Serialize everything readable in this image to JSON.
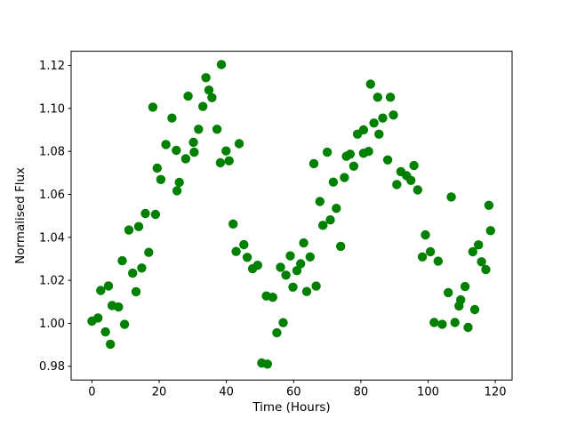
{
  "figure": {
    "background": "#ffffff",
    "plot_bg": "#ffffff",
    "spine_color": "#000000"
  },
  "chart_data": {
    "type": "scatter",
    "title": "",
    "xlabel": "Time (Hours)",
    "ylabel": "Normalised Flux",
    "legend": null,
    "grid": false,
    "marker": "circle",
    "marker_color": "#008000",
    "marker_radius_px": 5.2,
    "xlim": [
      -6.2,
      125.0
    ],
    "ylim": [
      0.9736,
      1.1266
    ],
    "xticks": [
      0,
      20,
      40,
      60,
      80,
      100,
      120
    ],
    "xtick_labels": [
      "0",
      "20",
      "40",
      "60",
      "80",
      "100",
      "120"
    ],
    "yticks": [
      0.98,
      1.0,
      1.02,
      1.04,
      1.06,
      1.08,
      1.1,
      1.12
    ],
    "ytick_labels": [
      "0.98",
      "1.00",
      "1.02",
      "1.04",
      "1.06",
      "1.08",
      "1.10",
      "1.12"
    ],
    "x_units": "hours",
    "y_units": "normalised flux",
    "points": [
      [
        0.0,
        1.001
      ],
      [
        1.8,
        1.0025
      ],
      [
        2.6,
        1.0153
      ],
      [
        4.0,
        0.996
      ],
      [
        4.9,
        1.0174
      ],
      [
        5.5,
        0.9903
      ],
      [
        6.0,
        1.0083
      ],
      [
        7.9,
        1.0076
      ],
      [
        9.0,
        1.0291
      ],
      [
        9.7,
        0.9995
      ],
      [
        11.0,
        1.0434
      ],
      [
        12.1,
        1.0233
      ],
      [
        13.1,
        1.0147
      ],
      [
        13.9,
        1.045
      ],
      [
        14.8,
        1.0257
      ],
      [
        15.9,
        1.0511
      ],
      [
        16.9,
        1.033
      ],
      [
        18.1,
        1.1006
      ],
      [
        18.9,
        1.0507
      ],
      [
        19.4,
        1.0722
      ],
      [
        20.5,
        1.0669
      ],
      [
        22.0,
        1.0832
      ],
      [
        23.8,
        1.0955
      ],
      [
        25.1,
        1.0805
      ],
      [
        25.3,
        1.0617
      ],
      [
        26.0,
        1.0656
      ],
      [
        27.9,
        1.0766
      ],
      [
        28.6,
        1.1057
      ],
      [
        30.2,
        1.0842
      ],
      [
        30.4,
        1.0796
      ],
      [
        31.7,
        1.0903
      ],
      [
        33.0,
        1.1009
      ],
      [
        33.9,
        1.1143
      ],
      [
        34.8,
        1.1085
      ],
      [
        35.7,
        1.105
      ],
      [
        37.2,
        1.0903
      ],
      [
        38.2,
        1.0747
      ],
      [
        38.5,
        1.1204
      ],
      [
        39.9,
        1.0802
      ],
      [
        40.8,
        1.0756
      ],
      [
        42.0,
        1.0462
      ],
      [
        42.9,
        1.0334
      ],
      [
        43.8,
        1.0836
      ],
      [
        45.2,
        1.0366
      ],
      [
        46.2,
        1.0307
      ],
      [
        47.8,
        1.0254
      ],
      [
        49.3,
        1.027
      ],
      [
        50.5,
        0.9815
      ],
      [
        51.9,
        1.0127
      ],
      [
        52.2,
        0.981
      ],
      [
        53.8,
        1.0121
      ],
      [
        55.0,
        0.9956
      ],
      [
        56.1,
        1.0261
      ],
      [
        56.9,
        1.0003
      ],
      [
        57.7,
        1.0224
      ],
      [
        59.0,
        1.0314
      ],
      [
        59.8,
        1.0168
      ],
      [
        61.0,
        1.0245
      ],
      [
        62.1,
        1.0277
      ],
      [
        63.0,
        1.0374
      ],
      [
        63.9,
        1.0148
      ],
      [
        64.9,
        1.0309
      ],
      [
        66.0,
        1.0743
      ],
      [
        66.7,
        1.0173
      ],
      [
        67.8,
        1.0567
      ],
      [
        68.7,
        1.0456
      ],
      [
        70.0,
        1.0796
      ],
      [
        70.9,
        1.0481
      ],
      [
        71.8,
        1.0657
      ],
      [
        72.7,
        1.0535
      ],
      [
        74.0,
        1.0358
      ],
      [
        75.1,
        1.0678
      ],
      [
        75.7,
        1.0777
      ],
      [
        76.8,
        1.0787
      ],
      [
        77.9,
        1.0731
      ],
      [
        79.0,
        1.088
      ],
      [
        80.8,
        1.09
      ],
      [
        80.8,
        1.0791
      ],
      [
        82.3,
        1.08
      ],
      [
        82.9,
        1.1113
      ],
      [
        83.9,
        1.0932
      ],
      [
        85.0,
        1.1052
      ],
      [
        85.4,
        1.088
      ],
      [
        86.5,
        1.0955
      ],
      [
        88.0,
        1.076
      ],
      [
        88.8,
        1.1052
      ],
      [
        89.7,
        1.0969
      ],
      [
        90.7,
        1.0646
      ],
      [
        91.9,
        1.0706
      ],
      [
        93.6,
        1.0687
      ],
      [
        94.9,
        1.0665
      ],
      [
        95.8,
        1.0734
      ],
      [
        96.9,
        1.0621
      ],
      [
        98.3,
        1.0309
      ],
      [
        99.2,
        1.0411
      ],
      [
        100.7,
        1.0333
      ],
      [
        101.8,
        1.0004
      ],
      [
        103.0,
        1.0289
      ],
      [
        104.2,
        0.9995
      ],
      [
        106.0,
        1.0143
      ],
      [
        106.9,
        1.0588
      ],
      [
        108.0,
        1.0004
      ],
      [
        109.2,
        1.0081
      ],
      [
        109.7,
        1.0109
      ],
      [
        111.0,
        1.0171
      ],
      [
        111.9,
        0.9981
      ],
      [
        113.3,
        1.0333
      ],
      [
        113.9,
        1.0064
      ],
      [
        115.0,
        1.0365
      ],
      [
        115.9,
        1.0286
      ],
      [
        117.2,
        1.025
      ],
      [
        118.1,
        1.0549
      ],
      [
        118.6,
        1.0431
      ]
    ]
  }
}
